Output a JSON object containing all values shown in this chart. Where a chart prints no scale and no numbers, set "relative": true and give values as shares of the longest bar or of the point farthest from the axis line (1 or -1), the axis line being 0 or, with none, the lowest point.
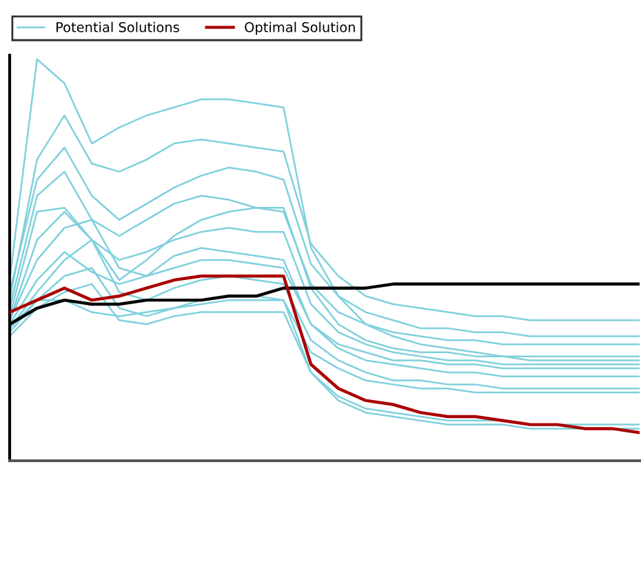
{
  "chart_data": {
    "type": "line",
    "relative": true,
    "legend": "top left",
    "grid": false,
    "marker": "none",
    "line_style": "solid",
    "categories": [
      null,
      null,
      null,
      null,
      null,
      null,
      null,
      null,
      null,
      null,
      null,
      null,
      null,
      null,
      null,
      null,
      null,
      null,
      null,
      null,
      null,
      null,
      null,
      null
    ],
    "series": [
      {
        "name": "Potential Solutions",
        "color": "#7fd0dc",
        "values": [
          0.45,
          1.0,
          0.94,
          0.79,
          0.83,
          0.86,
          0.88,
          0.9,
          0.9,
          0.89,
          0.88,
          0.53,
          0.41,
          0.34,
          0.31,
          0.29,
          0.28,
          0.27,
          0.26,
          0.25,
          0.25,
          0.25,
          0.25,
          0.25
        ]
      },
      {
        "color": "#7fd0dc",
        "values": [
          0.4,
          0.75,
          0.86,
          0.74,
          0.72,
          0.75,
          0.79,
          0.8,
          0.79,
          0.78,
          0.77,
          0.54,
          0.46,
          0.41,
          0.39,
          0.38,
          0.37,
          0.36,
          0.36,
          0.35,
          0.35,
          0.35,
          0.35,
          0.35
        ]
      },
      {
        "color": "#7fd0dc",
        "values": [
          0.42,
          0.7,
          0.78,
          0.66,
          0.6,
          0.64,
          0.68,
          0.71,
          0.73,
          0.72,
          0.7,
          0.49,
          0.41,
          0.37,
          0.35,
          0.33,
          0.33,
          0.32,
          0.32,
          0.31,
          0.31,
          0.31,
          0.31,
          0.31
        ]
      },
      {
        "color": "#7fd0dc",
        "values": [
          0.38,
          0.66,
          0.72,
          0.6,
          0.56,
          0.6,
          0.64,
          0.66,
          0.65,
          0.63,
          0.62,
          0.44,
          0.37,
          0.34,
          0.32,
          0.31,
          0.3,
          0.3,
          0.29,
          0.29,
          0.29,
          0.29,
          0.29,
          0.29
        ]
      },
      {
        "color": "#7fd0dc",
        "values": [
          0.35,
          0.55,
          0.62,
          0.55,
          0.45,
          0.5,
          0.56,
          0.6,
          0.62,
          0.63,
          0.63,
          0.43,
          0.34,
          0.3,
          0.28,
          0.27,
          0.27,
          0.26,
          0.26,
          0.26,
          0.26,
          0.26,
          0.26,
          0.26
        ]
      },
      {
        "color": "#7fd0dc",
        "values": [
          0.36,
          0.62,
          0.63,
          0.55,
          0.5,
          0.52,
          0.55,
          0.57,
          0.58,
          0.57,
          0.57,
          0.39,
          0.32,
          0.29,
          0.27,
          0.26,
          0.25,
          0.25,
          0.24,
          0.24,
          0.24,
          0.24,
          0.24,
          0.24
        ]
      },
      {
        "color": "#7fd0dc",
        "values": [
          0.35,
          0.5,
          0.58,
          0.6,
          0.48,
          0.46,
          0.48,
          0.5,
          0.5,
          0.49,
          0.48,
          0.34,
          0.29,
          0.27,
          0.25,
          0.25,
          0.24,
          0.24,
          0.23,
          0.23,
          0.23,
          0.23,
          0.23,
          0.23
        ]
      },
      {
        "color": "#7fd0dc",
        "values": [
          0.34,
          0.45,
          0.52,
          0.47,
          0.44,
          0.46,
          0.51,
          0.53,
          0.52,
          0.51,
          0.5,
          0.34,
          0.28,
          0.25,
          0.24,
          0.23,
          0.22,
          0.22,
          0.21,
          0.21,
          0.21,
          0.21,
          0.21,
          0.21
        ]
      },
      {
        "color": "#7fd0dc",
        "values": [
          0.33,
          0.42,
          0.5,
          0.55,
          0.42,
          0.4,
          0.43,
          0.45,
          0.46,
          0.45,
          0.44,
          0.3,
          0.25,
          0.22,
          0.2,
          0.2,
          0.19,
          0.19,
          0.18,
          0.18,
          0.18,
          0.18,
          0.18,
          0.18
        ]
      },
      {
        "color": "#7fd0dc",
        "values": [
          0.32,
          0.4,
          0.46,
          0.48,
          0.38,
          0.36,
          0.38,
          0.4,
          0.41,
          0.41,
          0.4,
          0.27,
          0.23,
          0.2,
          0.19,
          0.18,
          0.18,
          0.17,
          0.17,
          0.17,
          0.17,
          0.17,
          0.17,
          0.17
        ]
      },
      {
        "color": "#7fd0dc",
        "values": [
          0.31,
          0.38,
          0.42,
          0.44,
          0.35,
          0.34,
          0.36,
          0.37,
          0.37,
          0.37,
          0.37,
          0.22,
          0.16,
          0.13,
          0.12,
          0.11,
          0.1,
          0.1,
          0.1,
          0.09,
          0.09,
          0.09,
          0.09,
          0.09
        ]
      },
      {
        "color": "#7fd0dc",
        "values": [
          0.33,
          0.4,
          0.4,
          0.37,
          0.36,
          0.37,
          0.38,
          0.39,
          0.4,
          0.4,
          0.4,
          0.22,
          0.15,
          0.12,
          0.11,
          0.1,
          0.09,
          0.09,
          0.09,
          0.08,
          0.08,
          0.08,
          0.08,
          0.08
        ]
      },
      {
        "color": "#000000",
        "values": [
          0.34,
          0.38,
          0.4,
          0.39,
          0.39,
          0.4,
          0.4,
          0.4,
          0.41,
          0.41,
          0.43,
          0.43,
          0.43,
          0.43,
          0.44,
          0.44,
          0.44,
          0.44,
          0.44,
          0.44,
          0.44,
          0.44,
          0.44,
          0.44
        ]
      },
      {
        "name": "Optimal Solution",
        "color": "#aa0000",
        "values": [
          0.37,
          0.4,
          0.43,
          0.4,
          0.41,
          0.43,
          0.45,
          0.46,
          0.46,
          0.46,
          0.46,
          0.24,
          0.18,
          0.15,
          0.14,
          0.12,
          0.11,
          0.11,
          0.1,
          0.09,
          0.09,
          0.08,
          0.08,
          0.07
        ]
      }
    ]
  }
}
